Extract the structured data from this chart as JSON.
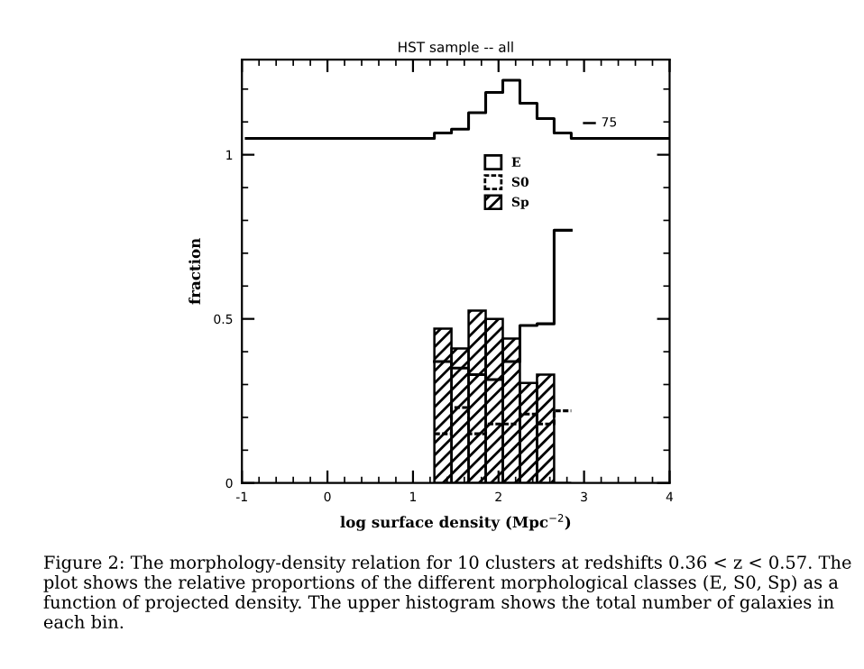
{
  "chart_data": {
    "type": "histogram",
    "title": "HST sample -- all",
    "xlabel": "log surface density (Mpc$^{−2}$)",
    "ylabel": "fraction",
    "bins": [
      1.25,
      1.45,
      1.65,
      1.85,
      2.05,
      2.25,
      2.45,
      2.65,
      2.85
    ],
    "series": [
      {
        "name": "E",
        "type": "step",
        "color": "#000000",
        "line_style": "solid",
        "x": [
          1.25,
          1.45,
          1.65,
          1.85,
          2.05,
          2.25,
          2.45,
          2.65,
          2.85
        ],
        "values": [
          0.37,
          0.35,
          0.33,
          0.315,
          0.37,
          0.48,
          0.485,
          0.77,
          0.77
        ]
      },
      {
        "name": "S0",
        "type": "step",
        "color": "#000000",
        "line_style": "dashed",
        "x": [
          1.25,
          1.45,
          1.65,
          1.85,
          2.05,
          2.25,
          2.45,
          2.65,
          2.85
        ],
        "values": [
          0.15,
          0.23,
          0.15,
          0.18,
          0.18,
          0.21,
          0.18,
          0.22,
          0.22
        ]
      },
      {
        "name": "Sp",
        "color": "#000000",
        "line_style": "solid",
        "values": [
          0.47,
          0.41,
          0.525,
          0.5,
          0.44,
          0.305,
          0.33,
          0
        ]
      },
      {
        "type": "step",
        "color": "#000000",
        "line_style": "solid",
        "x": [
          -0.95,
          1.25,
          1.45,
          1.65,
          1.85,
          2.05,
          2.25,
          2.45,
          2.65,
          2.85,
          4
        ],
        "values": [
          1.05,
          1.066,
          1.078,
          1.128,
          1.19,
          1.227,
          1.157,
          1.11,
          1.066,
          1.05,
          1.05
        ]
      }
    ],
    "xlim": [
      -1,
      4
    ],
    "xticks": [
      -1,
      0,
      1,
      2,
      3,
      4
    ],
    "ylim": [
      0,
      1.29
    ],
    "yticks": [
      0,
      0.5,
      1
    ],
    "grid": false,
    "legend": "top",
    "annotations": [
      "75",
      "Figure 2: The morphology-density relation for 10 clusters at redshifts 0.36 < z < 0.57. The plot shows the relative proportions of the different morphological classes (E, S0, Sp) as a function of projected density. The upper histogram shows the total number of galaxies in each bin."
    ]
  }
}
